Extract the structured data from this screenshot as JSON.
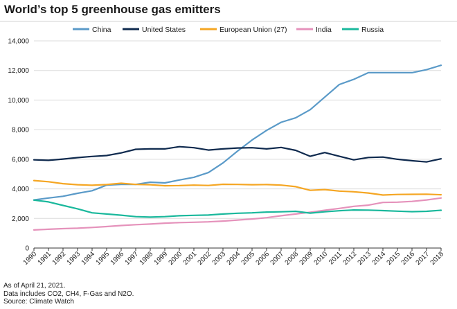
{
  "header": {
    "title": "World’s top 5 greenhouse gas emitters"
  },
  "footer": {
    "line1": "As of April 21, 2021.",
    "line2": "Data includes CO2, CH4, F-Gas and N2O.",
    "line3": "Source: Climate Watch"
  },
  "chart_data": {
    "type": "line",
    "title": "World’s top 5 greenhouse gas emitters",
    "xlabel": "",
    "ylabel": "",
    "ylim": [
      0,
      14000
    ],
    "yticks": [
      0,
      2000,
      4000,
      6000,
      8000,
      10000,
      12000,
      14000
    ],
    "grid": "horizontal",
    "legend_position": "top",
    "x": [
      1990,
      1991,
      1992,
      1993,
      1994,
      1995,
      1996,
      1997,
      1998,
      1999,
      2000,
      2001,
      2002,
      2003,
      2004,
      2005,
      2006,
      2007,
      2008,
      2009,
      2010,
      2011,
      2012,
      2013,
      2014,
      2015,
      2016,
      2017,
      2018
    ],
    "series": [
      {
        "name": "China",
        "color": "#5a9ac8",
        "values": [
          3250,
          3380,
          3500,
          3700,
          3870,
          4250,
          4300,
          4300,
          4450,
          4400,
          4600,
          4780,
          5100,
          5750,
          6550,
          7300,
          7950,
          8500,
          8800,
          9350,
          10200,
          11050,
          11400,
          11850,
          11850,
          11850,
          11850,
          12050,
          12350
        ]
      },
      {
        "name": "United States",
        "color": "#0f2a4e",
        "values": [
          5960,
          5930,
          6010,
          6110,
          6190,
          6250,
          6430,
          6670,
          6700,
          6700,
          6850,
          6780,
          6620,
          6700,
          6760,
          6780,
          6700,
          6800,
          6600,
          6200,
          6450,
          6200,
          5960,
          6120,
          6150,
          6000,
          5900,
          5820,
          6030
        ]
      },
      {
        "name": "European Union (27)",
        "color": "#f5a623",
        "values": [
          4560,
          4480,
          4350,
          4280,
          4240,
          4290,
          4380,
          4300,
          4280,
          4210,
          4220,
          4250,
          4230,
          4310,
          4300,
          4280,
          4290,
          4250,
          4150,
          3900,
          3950,
          3850,
          3800,
          3720,
          3580,
          3620,
          3630,
          3640,
          3600
        ]
      },
      {
        "name": "India",
        "color": "#e592bb",
        "values": [
          1220,
          1270,
          1310,
          1340,
          1390,
          1450,
          1520,
          1580,
          1620,
          1680,
          1720,
          1740,
          1770,
          1820,
          1890,
          1960,
          2050,
          2180,
          2300,
          2420,
          2550,
          2680,
          2820,
          2900,
          3080,
          3100,
          3150,
          3250,
          3380
        ]
      },
      {
        "name": "Russia",
        "color": "#1ab89c",
        "values": [
          3240,
          3120,
          2880,
          2650,
          2380,
          2300,
          2220,
          2120,
          2090,
          2120,
          2180,
          2210,
          2230,
          2300,
          2350,
          2380,
          2430,
          2450,
          2480,
          2360,
          2450,
          2520,
          2570,
          2560,
          2530,
          2490,
          2460,
          2480,
          2550
        ]
      }
    ]
  }
}
